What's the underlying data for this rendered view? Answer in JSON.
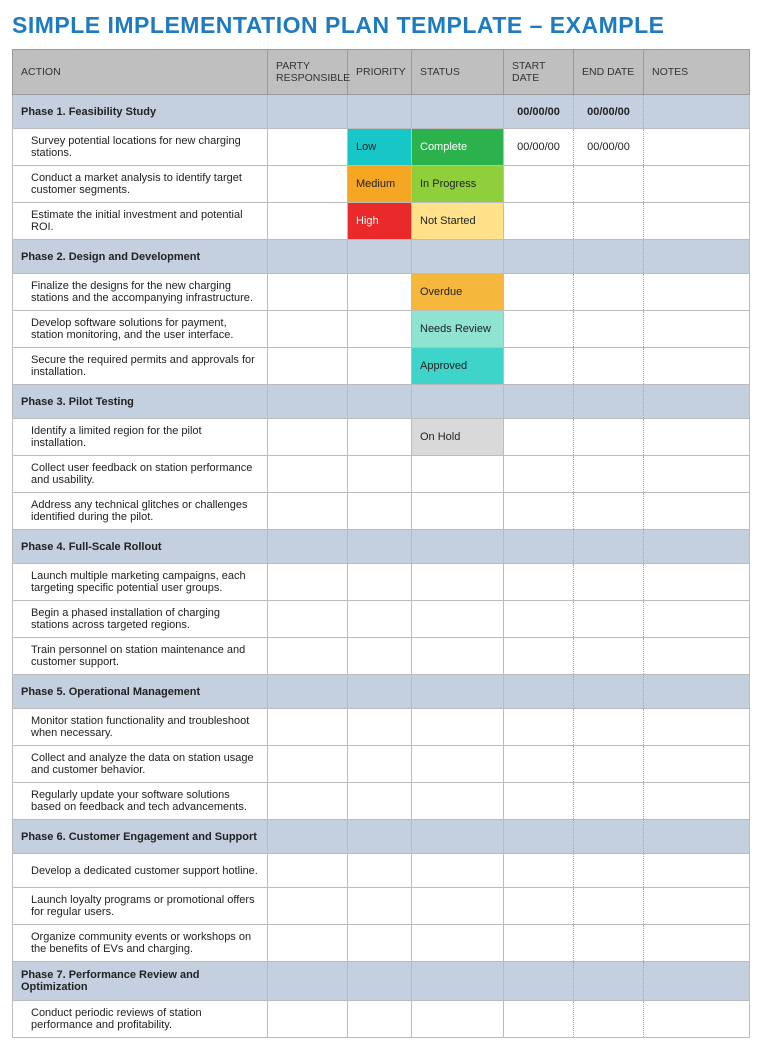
{
  "title": "SIMPLE IMPLEMENTATION PLAN TEMPLATE – EXAMPLE",
  "columns": [
    "ACTION",
    "PARTY RESPONSIBLE",
    "PRIORITY",
    "STATUS",
    "START DATE",
    "END DATE",
    "NOTES"
  ],
  "colors": {
    "header_bg": "#bfbfbf",
    "phase_bg": "#c4cfdf",
    "border": "#bcbcbc",
    "title": "#1f7bbf",
    "priority": {
      "Low": "#17c7c7",
      "Medium": "#f5a623",
      "High": "#ea2a2a"
    },
    "status": {
      "Complete": "#2bb24c",
      "In Progress": "#8fcf3c",
      "Not Started": "#ffe28a",
      "Overdue": "#f5b83d",
      "Needs Review": "#8fe3d1",
      "Approved": "#3fd4c9",
      "On Hold": "#d9d9d9"
    }
  },
  "phases": [
    {
      "label": "Phase 1.  Feasibility Study",
      "start": "00/00/00",
      "end": "00/00/00",
      "tasks": [
        {
          "action": "Survey potential locations for new charging stations.",
          "priority": "Low",
          "status": "Complete",
          "start": "00/00/00",
          "end": "00/00/00"
        },
        {
          "action": "Conduct a market analysis to identify target customer segments.",
          "priority": "Medium",
          "status": "In Progress"
        },
        {
          "action": "Estimate the initial investment and potential ROI.",
          "priority": "High",
          "status": "Not Started"
        }
      ]
    },
    {
      "label": "Phase 2.  Design and Development",
      "tasks": [
        {
          "action": "Finalize the designs for the new charging stations and the accompanying infrastructure.",
          "status": "Overdue"
        },
        {
          "action": "Develop software solutions for payment, station monitoring, and the user interface.",
          "status": "Needs Review"
        },
        {
          "action": "Secure the required permits and approvals for installation.",
          "status": "Approved"
        }
      ]
    },
    {
      "label": "Phase 3.  Pilot Testing",
      "tasks": [
        {
          "action": "Identify a limited region for the pilot installation.",
          "status": "On Hold"
        },
        {
          "action": "Collect user feedback on station performance and usability."
        },
        {
          "action": "Address any technical glitches or challenges identified during the pilot."
        }
      ]
    },
    {
      "label": "Phase 4.  Full-Scale Rollout",
      "tasks": [
        {
          "action": "Launch multiple marketing campaigns, each targeting specific potential user groups."
        },
        {
          "action": "Begin a phased installation of charging stations across targeted regions."
        },
        {
          "action": "Train personnel on station maintenance and customer support."
        }
      ]
    },
    {
      "label": "Phase 5.  Operational Management",
      "tasks": [
        {
          "action": "Monitor station functionality and troubleshoot when necessary."
        },
        {
          "action": "Collect and analyze the data on station usage and customer behavior."
        },
        {
          "action": "Regularly update your software solutions based on feedback and tech advancements."
        }
      ]
    },
    {
      "label": "Phase 6.  Customer Engagement and Support",
      "tasks": [
        {
          "action": "Develop a dedicated customer support hotline."
        },
        {
          "action": "Launch loyalty programs or promotional offers for regular users."
        },
        {
          "action": "Organize community events or workshops on the benefits of EVs and charging."
        }
      ]
    },
    {
      "label": "Phase 7.  Performance Review and Optimization",
      "tasks": [
        {
          "action": "Conduct periodic reviews of station performance and profitability."
        }
      ]
    }
  ]
}
